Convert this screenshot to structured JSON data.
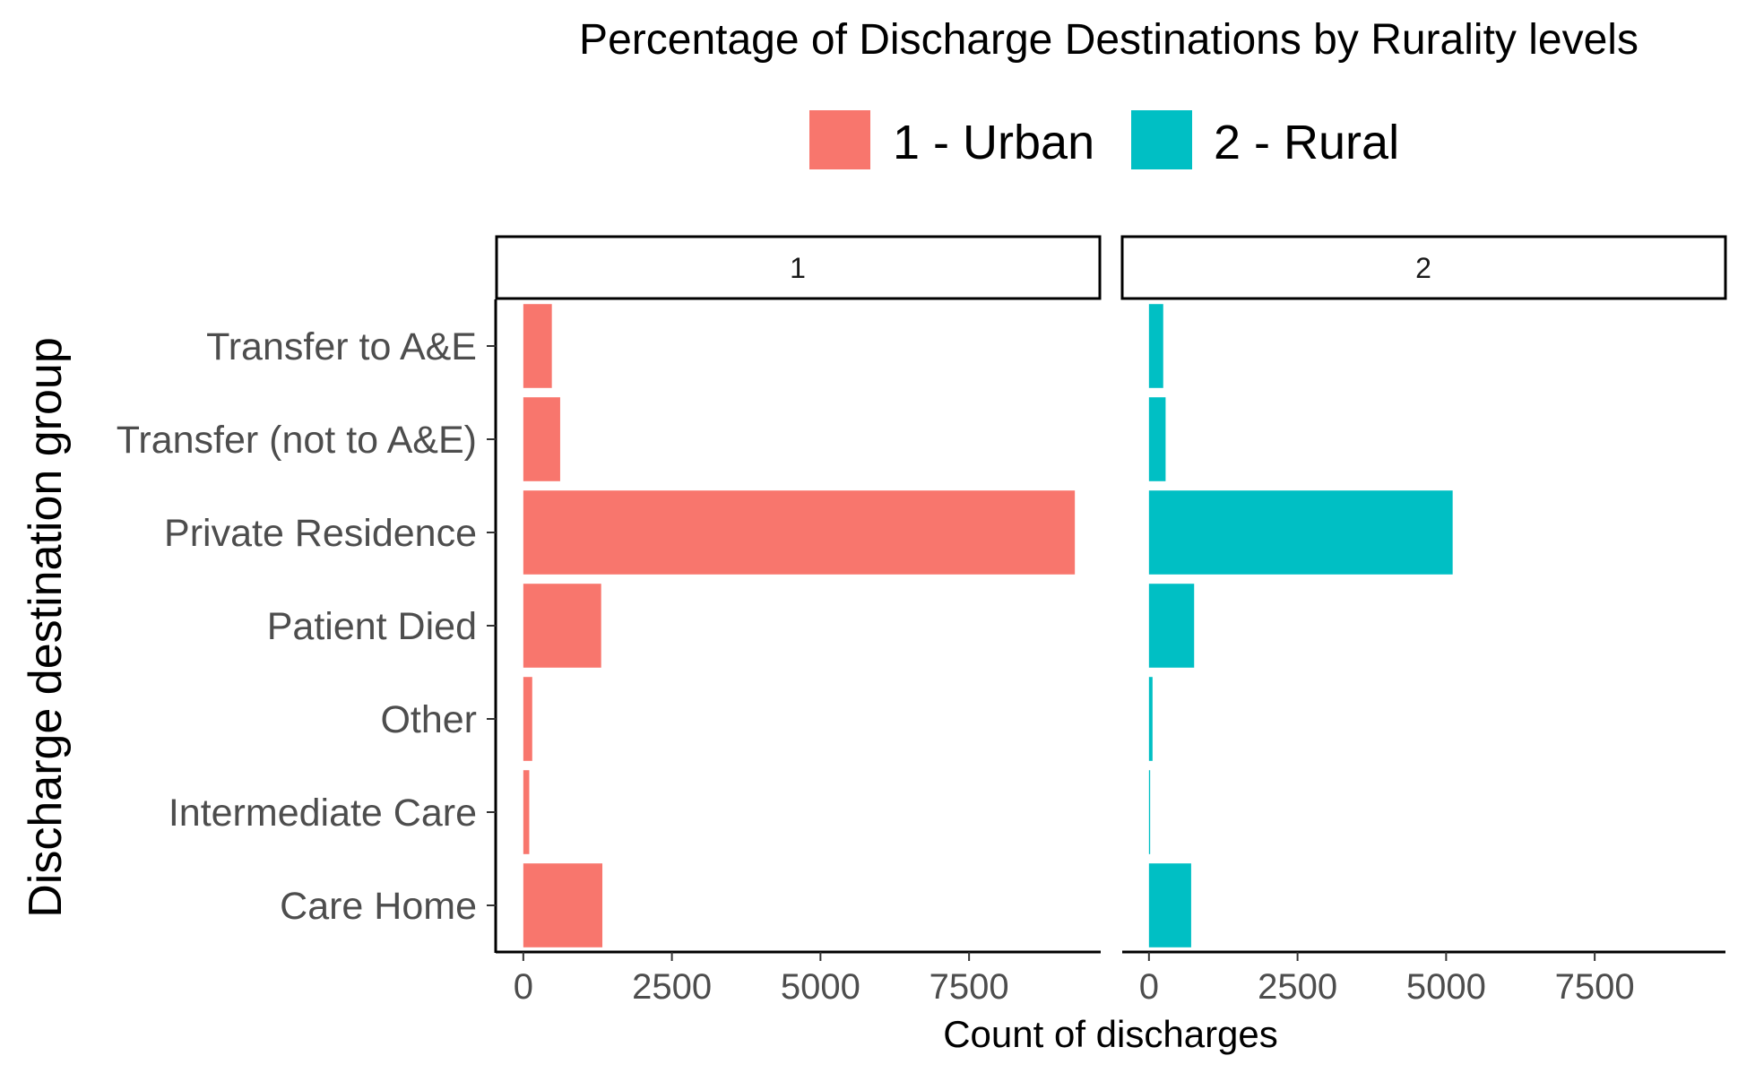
{
  "chart_data": {
    "type": "bar",
    "orientation": "horizontal",
    "title": "Percentage of Discharge Destinations by Rurality levels",
    "xlabel": "Count of discharges",
    "ylabel": "Discharge destination group",
    "categories": [
      "Transfer to A&E",
      "Transfer (not to A&E)",
      "Private Residence",
      "Patient Died",
      "Other",
      "Intermediate Care",
      "Care Home"
    ],
    "xlim": [
      -450,
      9700
    ],
    "xticks": [
      0,
      2500,
      5000,
      7500
    ],
    "xtick_labels": [
      "0",
      "2500",
      "5000",
      "7500"
    ],
    "legend_position": "top",
    "grid": false,
    "legend": [
      {
        "label": "1 - Urban",
        "color": "#F8766D"
      },
      {
        "label": "2 - Rural",
        "color": "#00BFC4"
      }
    ],
    "panels": [
      {
        "strip": "1",
        "color": "#F8766D",
        "values": [
          480,
          620,
          9280,
          1310,
          150,
          100,
          1330
        ]
      },
      {
        "strip": "2",
        "color": "#00BFC4",
        "values": [
          240,
          280,
          5110,
          760,
          60,
          20,
          710
        ]
      }
    ]
  }
}
